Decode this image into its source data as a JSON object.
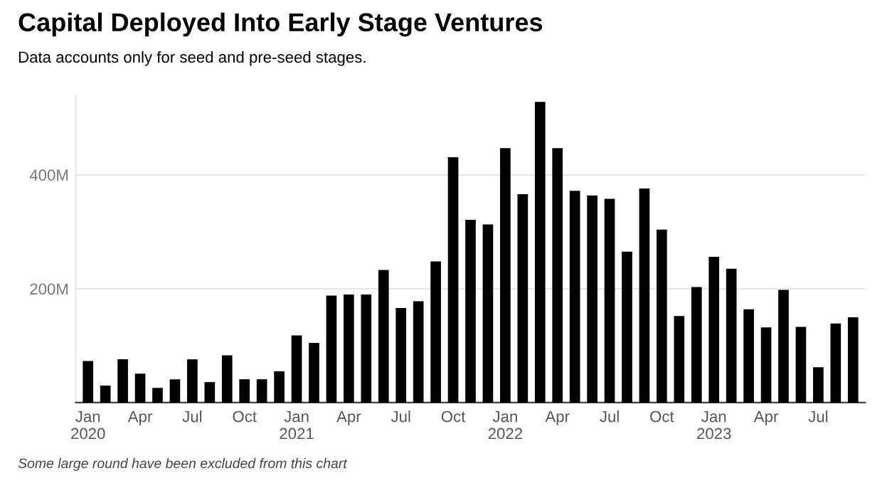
{
  "chart_data": {
    "type": "bar",
    "title": "Capital Deployed Into Early Stage Ventures",
    "subtitle": "Data accounts only for seed and pre-seed stages.",
    "categories": [
      "Jan\n2020",
      null,
      null,
      "Apr",
      null,
      null,
      "Jul",
      null,
      null,
      "Oct",
      null,
      null,
      "Jan\n2021",
      null,
      null,
      "Apr",
      null,
      null,
      "Jul",
      null,
      null,
      "Oct",
      null,
      null,
      "Jan\n2022",
      null,
      null,
      "Apr",
      null,
      null,
      "Jul",
      null,
      null,
      "Oct",
      null,
      null,
      "Jan\n2023",
      null,
      null,
      "Apr",
      null,
      null,
      "Jul",
      null,
      null
    ],
    "values": [
      73,
      30,
      76,
      51,
      26,
      41,
      76,
      36,
      83,
      41,
      41,
      55,
      118,
      105,
      188,
      190,
      190,
      233,
      166,
      178,
      248,
      431,
      321,
      313,
      447,
      366,
      528,
      447,
      372,
      364,
      358,
      265,
      376,
      304,
      152,
      203,
      256,
      235,
      164,
      132,
      198,
      133,
      62,
      139,
      150
    ],
    "color": "#000000",
    "ylim": [
      0,
      540
    ],
    "yticks": [
      {
        "value": 200,
        "label": "200M"
      },
      {
        "value": 400,
        "label": "400M"
      }
    ],
    "grid": "y",
    "annotations": [
      "Some large round have been excluded from this chart"
    ]
  }
}
